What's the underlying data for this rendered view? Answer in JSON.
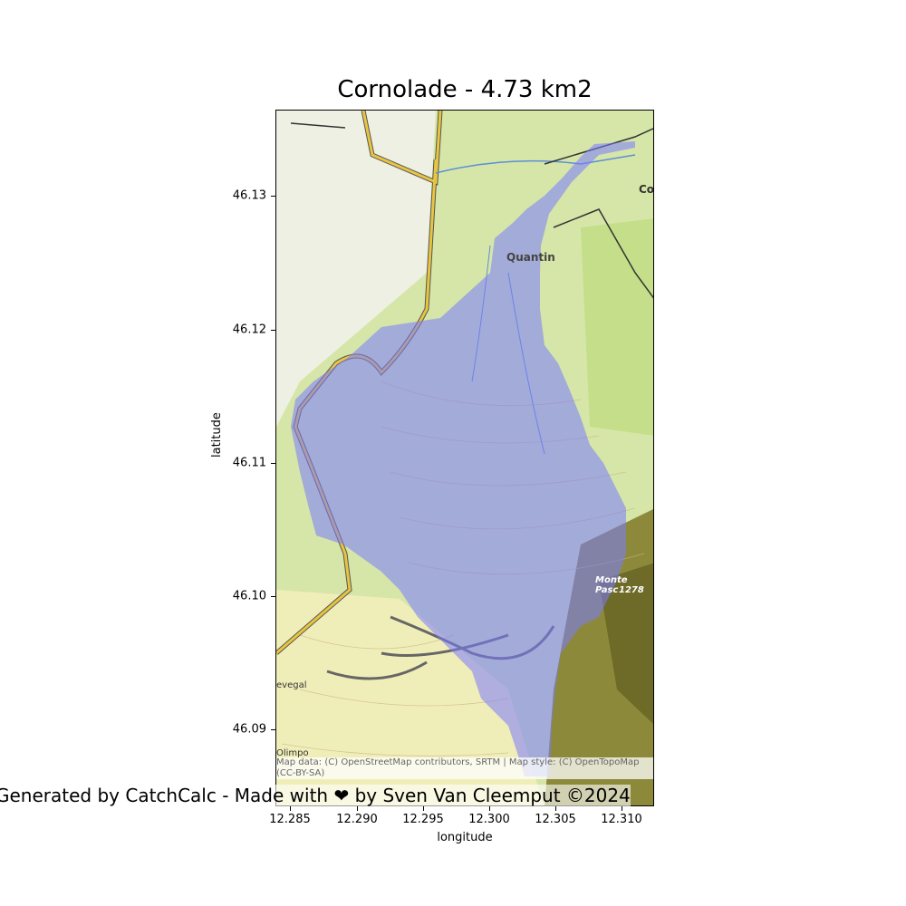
{
  "title": "Cornolade - 4.73 km2",
  "xlabel": "longitude",
  "ylabel": "latitude",
  "xticks": [
    "12.285",
    "12.290",
    "12.295",
    "12.300",
    "12.305",
    "12.310"
  ],
  "yticks": [
    "46.13",
    "46.12",
    "46.11",
    "46.10",
    "46.09"
  ],
  "map_labels": {
    "quantin": "Quantin",
    "co": "Co",
    "monte": "Monte Pasc",
    "monte_elev": "1278",
    "revegal": "evegal",
    "olimpo": "Olimpo"
  },
  "attribution": "Map data: (C) OpenStreetMap contributors, SRTM | Map style: (C) OpenTopoMap (CC-BY-SA)",
  "credit": "Generated by CatchCalc -  Made with ❤ by Sven Van Cleemput ©2024",
  "colors": {
    "catchment": "#7a7aff",
    "map_green": "#cfe3a0",
    "map_yellow": "#eef0b0",
    "road": "#e8c540"
  }
}
